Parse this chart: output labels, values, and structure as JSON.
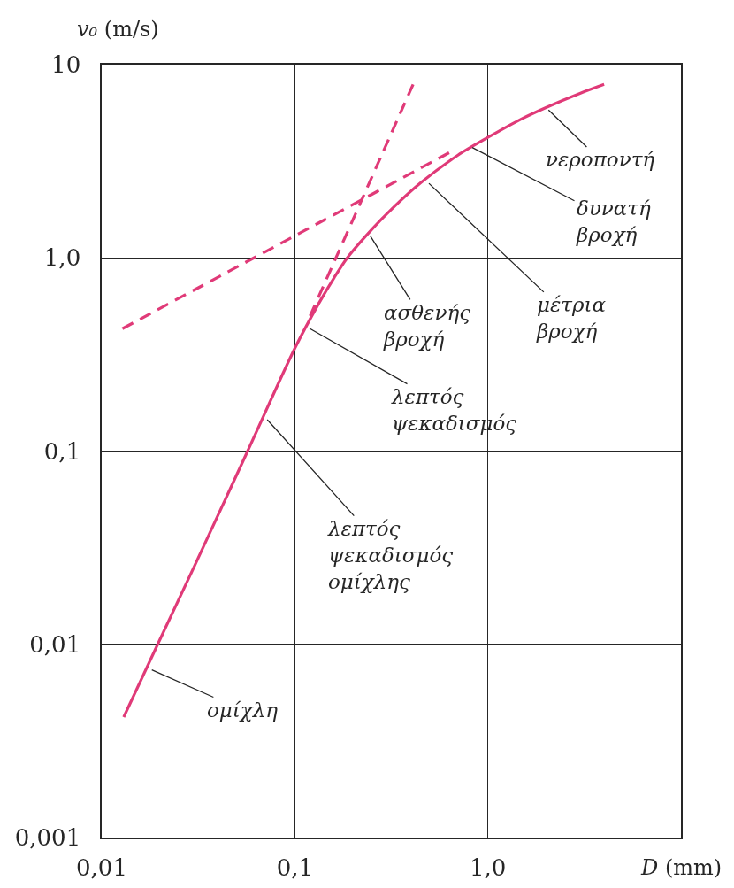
{
  "chart_data": {
    "type": "line",
    "xlabel": "D (mm)",
    "ylabel": "v₀ (m/s)",
    "log": "xy",
    "grid": true,
    "xlim": [
      0.01,
      10
    ],
    "xticks": [
      {
        "value": 0.01,
        "label": "0,01"
      },
      {
        "value": 0.1,
        "label": "0,1"
      },
      {
        "value": 1,
        "label": "1,0"
      }
    ],
    "ylim": [
      0.001,
      10
    ],
    "yticks": [
      {
        "value": 0.001,
        "label": "0,001"
      },
      {
        "value": 0.01,
        "label": "0,01"
      },
      {
        "value": 0.1,
        "label": "0,1"
      },
      {
        "value": 1,
        "label": "1,0"
      },
      10
    ],
    "series": [
      {
        "color": "#e03a78",
        "line_style": "solid",
        "x": [
          0.013,
          0.0195,
          0.03,
          0.057,
          0.1,
          0.133,
          0.16,
          0.187,
          0.25,
          0.316,
          0.45,
          0.7,
          1.0,
          1.5,
          2.0,
          3.0,
          4.0
        ],
        "values": [
          0.0042,
          0.01,
          0.025,
          0.1,
          0.34,
          0.58,
          0.79,
          1.0,
          1.4,
          1.78,
          2.45,
          3.4,
          4.2,
          5.25,
          6.0,
          7.1,
          7.9
        ]
      },
      {
        "color": "#e03a78",
        "line_style": "dashed",
        "x": [
          0.12,
          0.41
        ],
        "values": [
          0.5,
          7.9
        ]
      },
      {
        "color": "#e03a78",
        "line_style": "dashed",
        "x": [
          0.0128,
          0.63
        ],
        "values": [
          0.43,
          3.5
        ]
      }
    ],
    "annotations": [
      {
        "text": "νεροποντή",
        "x": 2.0,
        "y": 6.0
      },
      {
        "text": "δυνατή βροχή",
        "x": 0.8,
        "y": 3.8
      },
      {
        "text": "μέτρια βροχή",
        "x": 0.48,
        "y": 2.5
      },
      {
        "text": "ασθενής βροχή",
        "x": 0.24,
        "y": 1.35
      },
      {
        "text": "λεπτός ψεκαδισμός",
        "x": 0.115,
        "y": 0.44
      },
      {
        "text": "λεπτός ψεκαδισμός ομίχλης",
        "x": 0.07,
        "y": 0.15
      },
      {
        "text": "ομίχλη",
        "x": 0.0175,
        "y": 0.0075
      }
    ]
  }
}
